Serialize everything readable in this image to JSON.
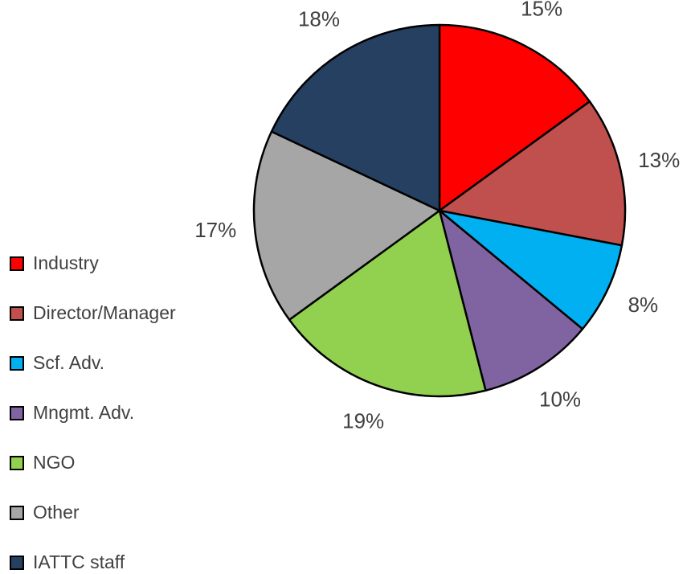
{
  "chart_data": {
    "type": "pie",
    "categories": [
      "Industry",
      "Director/Manager",
      "Scf. Adv.",
      "Mngmt. Adv.",
      "NGO",
      "Other",
      "IATTC staff"
    ],
    "values": [
      15,
      13,
      8,
      10,
      19,
      17,
      18
    ],
    "value_labels": [
      "15%",
      "13%",
      "8%",
      "10%",
      "19%",
      "17%",
      "18%"
    ],
    "colors": [
      "#ff0000",
      "#c0504d",
      "#00b0f0",
      "#8064a2",
      "#92d050",
      "#a6a6a6",
      "#254061"
    ],
    "legend": "left"
  }
}
